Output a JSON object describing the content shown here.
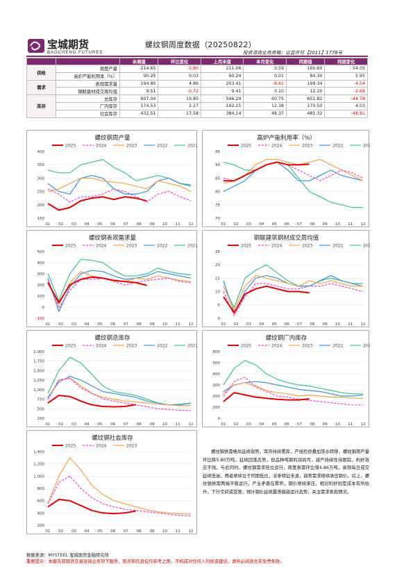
{
  "header": {
    "logo_cn": "宝城期货",
    "logo_en": "BAOCHENG FUTURES",
    "title": "螺纹钢周度数据（20250822）",
    "license": "投资咨询业务资格：证监许可【2011】1778号"
  },
  "table": {
    "columns": [
      "",
      "",
      "本周值",
      "环比变化",
      "上月末值",
      "本月变化",
      "同期值",
      "同期变化"
    ],
    "groups": [
      {
        "name": "供给",
        "rows": [
          {
            "item": "周度产量",
            "values": [
              "214.65",
              "-5.80",
              "211.06",
              "3.59",
              "160.60",
              "54.05"
            ]
          },
          {
            "item": "高炉产能利用率（%）",
            "values": [
              "90.25",
              "0.03",
              "90.24",
              "0.01",
              "84.30",
              "5.95"
            ]
          }
        ]
      },
      {
        "name": "需求",
        "rows": [
          {
            "item": "表观需求量",
            "values": [
              "194.80",
              "4.86",
              "203.41",
              "-8.61",
              "199.34",
              "-4.54"
            ]
          },
          {
            "item": "钢联建材成交周均值",
            "values": [
              "9.51",
              "-0.72",
              "9.41",
              "0.10",
              "12.20",
              "-2.69"
            ]
          }
        ]
      },
      {
        "name": "库存",
        "rows": [
          {
            "item": "总库存",
            "values": [
              "607.04",
              "19.85",
              "546.29",
              "60.75",
              "651.82",
              "-44.78"
            ]
          },
          {
            "item": "厂内库存",
            "values": [
              "174.53",
              "2.27",
              "162.15",
              "12.38",
              "170.50",
              "4.03"
            ]
          },
          {
            "item": "社会库存",
            "values": [
              "432.51",
              "17.58",
              "384.14",
              "48.37",
              "481.32",
              "-48.81"
            ]
          }
        ]
      }
    ]
  },
  "colors": {
    "2025": "#e00000",
    "2024": "#ff33cc",
    "2023": "#f4a24a",
    "2022": "#3a8fd8",
    "2021": "#3cc08a",
    "brand": "#7b2b6b"
  },
  "chart_data": [
    {
      "type": "line",
      "title": "螺纹钢周产量",
      "ylim": [
        150,
        400
      ],
      "yticks": [
        "150",
        "200",
        "250",
        "300",
        "350",
        "400"
      ],
      "xticks": [
        "01",
        "02",
        "03",
        "04",
        "05",
        "06",
        "07",
        "08",
        "09",
        "10",
        "11",
        "12"
      ],
      "series": [
        {
          "name": "2025",
          "values": [
            205,
            180,
            190,
            215,
            225,
            230,
            220,
            230,
            225,
            214.65
          ]
        },
        {
          "name": "2024",
          "values": [
            260,
            240,
            210,
            230,
            230,
            240,
            260,
            250,
            230,
            210,
            240,
            250,
            230,
            215
          ]
        },
        {
          "name": "2023",
          "values": [
            250,
            260,
            280,
            300,
            300,
            290,
            285,
            280,
            270,
            260,
            290,
            280,
            270,
            250
          ]
        },
        {
          "name": "2022",
          "values": [
            280,
            250,
            240,
            300,
            310,
            300,
            260,
            240,
            240,
            250,
            290,
            300,
            280,
            270
          ]
        },
        {
          "name": "2021",
          "values": [
            330,
            320,
            320,
            350,
            360,
            370,
            340,
            320,
            290,
            300,
            310,
            300,
            280,
            275
          ]
        }
      ]
    },
    {
      "type": "line",
      "title": "高炉产能利用率（%）",
      "ylim": [
        70,
        95
      ],
      "yticks": [
        "70",
        "75",
        "80",
        "85",
        "90",
        "95"
      ],
      "xticks": [
        "01",
        "02",
        "03",
        "04",
        "05",
        "06",
        "07",
        "08",
        "09",
        "10",
        "11",
        "12"
      ],
      "series": [
        {
          "name": "2025",
          "values": [
            84,
            84,
            86,
            88,
            90,
            91,
            90,
            90,
            90.25
          ]
        },
        {
          "name": "2024",
          "values": [
            85,
            84,
            86,
            88,
            90,
            91,
            90,
            88,
            86,
            84,
            86,
            88,
            87,
            85
          ]
        },
        {
          "name": "2023",
          "values": [
            83,
            84,
            86,
            90,
            92,
            92,
            91,
            90,
            91,
            92,
            90,
            88,
            86,
            84
          ]
        },
        {
          "name": "2022",
          "values": [
            80,
            82,
            84,
            88,
            90,
            91,
            88,
            84,
            84,
            86,
            88,
            86,
            85,
            84
          ]
        },
        {
          "name": "2021",
          "values": [
            91,
            90,
            88,
            88,
            90,
            91,
            90,
            85,
            80,
            78,
            76,
            75,
            74,
            74
          ]
        }
      ]
    },
    {
      "type": "line",
      "title": "螺纹钢表观需求量",
      "ylim": [
        -100,
        500
      ],
      "yticks": [
        "-100",
        "0",
        "100",
        "200",
        "300",
        "400",
        "500"
      ],
      "xticks": [
        "01",
        "02",
        "03",
        "04",
        "05",
        "06",
        "07",
        "08",
        "09",
        "10",
        "11",
        "12"
      ],
      "series": [
        {
          "name": "2025",
          "values": [
            220,
            40,
            200,
            250,
            270,
            260,
            240,
            230,
            220,
            194.8
          ]
        },
        {
          "name": "2024",
          "values": [
            250,
            -10,
            150,
            250,
            250,
            260,
            230,
            200,
            220,
            240,
            250,
            260,
            230,
            220
          ]
        },
        {
          "name": "2023",
          "values": [
            230,
            20,
            220,
            320,
            280,
            260,
            240,
            230,
            260,
            250,
            280,
            260,
            240,
            230
          ]
        },
        {
          "name": "2022",
          "values": [
            260,
            -40,
            180,
            300,
            330,
            320,
            280,
            250,
            260,
            280,
            320,
            300,
            280,
            260
          ]
        },
        {
          "name": "2021",
          "values": [
            300,
            60,
            300,
            430,
            420,
            400,
            330,
            280,
            280,
            300,
            350,
            320,
            300,
            290
          ]
        }
      ]
    },
    {
      "type": "line",
      "title": "钢联建筑钢材成交周均值",
      "ylim": [
        0,
        25
      ],
      "yticks": [
        "0",
        "5",
        "10",
        "15",
        "20",
        "25"
      ],
      "xticks": [
        "01",
        "02",
        "03",
        "04",
        "05",
        "06",
        "07",
        "08",
        "09",
        "10",
        "11",
        "12"
      ],
      "series": [
        {
          "name": "2025",
          "values": [
            8,
            2,
            9,
            11,
            12,
            11,
            10,
            10,
            9.51
          ]
        },
        {
          "name": "2024",
          "values": [
            10,
            1,
            8,
            13,
            13,
            12,
            11,
            11,
            12,
            12,
            13,
            12,
            11,
            10
          ]
        },
        {
          "name": "2023",
          "values": [
            12,
            3,
            12,
            16,
            15,
            14,
            13,
            12,
            14,
            13,
            14,
            13,
            12,
            12
          ]
        },
        {
          "name": "2022",
          "values": [
            14,
            2,
            10,
            15,
            16,
            15,
            13,
            12,
            12,
            14,
            16,
            14,
            13,
            12
          ]
        },
        {
          "name": "2021",
          "values": [
            12,
            4,
            15,
            18,
            20,
            17,
            14,
            12,
            12,
            14,
            15,
            14,
            13,
            13
          ]
        }
      ]
    },
    {
      "type": "line",
      "title": "螺纹钢总库存",
      "ylim": [
        250,
        2000
      ],
      "yticks": [
        "250",
        "500",
        "750",
        "1,000",
        "1,250",
        "1,500",
        "1,750",
        "2,000"
      ],
      "xticks": [
        "01",
        "02",
        "03",
        "04",
        "05",
        "06",
        "07",
        "08",
        "09",
        "10",
        "11",
        "12"
      ],
      "series": [
        {
          "name": "2025",
          "values": [
            650,
            850,
            820,
            700,
            600,
            560,
            550,
            560,
            607.04
          ]
        },
        {
          "name": "2024",
          "values": [
            750,
            1250,
            1300,
            1050,
            900,
            760,
            700,
            650,
            600,
            550,
            500,
            480,
            460,
            450
          ]
        },
        {
          "name": "2023",
          "values": [
            750,
            1250,
            1300,
            1100,
            900,
            800,
            750,
            700,
            680,
            650,
            620,
            600,
            580,
            580
          ]
        },
        {
          "name": "2022",
          "values": [
            800,
            1200,
            1350,
            1250,
            1100,
            950,
            900,
            850,
            800,
            700,
            650,
            600,
            600,
            650
          ]
        },
        {
          "name": "2021",
          "values": [
            900,
            1500,
            1850,
            1700,
            1400,
            1100,
            950,
            900,
            850,
            750,
            650,
            600,
            620,
            640
          ]
        }
      ]
    },
    {
      "type": "line",
      "title": "螺纹钢厂内库存",
      "ylim": [
        0,
        600
      ],
      "yticks": [
        "0",
        "100",
        "200",
        "300",
        "400",
        "500",
        "600"
      ],
      "xticks": [
        "01",
        "02",
        "03",
        "04",
        "05",
        "06",
        "07",
        "08",
        "09",
        "10",
        "11",
        "12"
      ],
      "series": [
        {
          "name": "2025",
          "values": [
            150,
            230,
            210,
            190,
            180,
            170,
            165,
            165,
            174.53
          ]
        },
        {
          "name": "2024",
          "values": [
            200,
            330,
            370,
            280,
            240,
            200,
            190,
            170,
            160,
            150,
            140,
            130,
            120,
            120
          ]
        },
        {
          "name": "2023",
          "values": [
            220,
            300,
            320,
            290,
            250,
            230,
            220,
            200,
            210,
            200,
            190,
            190,
            180,
            180
          ]
        },
        {
          "name": "2022",
          "values": [
            240,
            300,
            320,
            330,
            320,
            300,
            280,
            260,
            250,
            240,
            220,
            200,
            200,
            210
          ]
        },
        {
          "name": "2021",
          "values": [
            300,
            450,
            520,
            480,
            400,
            350,
            320,
            300,
            290,
            270,
            250,
            230,
            220,
            220
          ]
        }
      ]
    },
    {
      "type": "line",
      "title": "螺纹钢社会库存",
      "ylim": [
        200,
        1400
      ],
      "yticks": [
        "200",
        "400",
        "600",
        "800",
        "1,000",
        "1,200",
        "1,400"
      ],
      "xticks": [
        "01",
        "02",
        "03",
        "04",
        "05",
        "06",
        "07",
        "08",
        "09",
        "10",
        "11",
        "12"
      ],
      "series": [
        {
          "name": "2025",
          "values": [
            500,
            620,
            600,
            520,
            440,
            400,
            390,
            400,
            432.51
          ]
        },
        {
          "name": "2024",
          "values": [
            550,
            900,
            1000,
            800,
            650,
            550,
            500,
            460,
            440,
            420,
            400,
            380,
            360,
            350
          ]
        },
        {
          "name": "2023",
          "values": [
            550,
            1000,
            1300,
            1100,
            850,
            700,
            600,
            550,
            500,
            450,
            420,
            400,
            390,
            380
          ]
        }
      ]
    }
  ],
  "paragraph": "螺纹钢供需格局延续弱势，库存持续累库，产线检修叠加铁水转移，螺纹钢周产量环比降5.80万吨，延续回落态势，但品种吨钢利润尚可，减产持续性待跟踪，利好效应不强。与此同时，螺纹钢需求低位运行，周度表需环比增4.86万吨，高频每日成交延续低迷，两者继续位于同期低位，淡季特征未退，弱势需求继续承压钢价。综上，螺纹钢供需两端平稳运行，产业矛盾在累积，钢价继续承压，相对利好则是成本有所抬升，下行空间或受限，预计钢价延续震荡偏弱运行态势，关注需求表现情况。",
  "footer": {
    "source": "数据来源：MYSTEEL 宝城期货金融研究所",
    "warning": "重要提示：本报告非期货交易咨询业务项下服务，观点和信息仅作参考之用，不构成对任何人的投资建议，请务必阅读文末免责条款。"
  }
}
